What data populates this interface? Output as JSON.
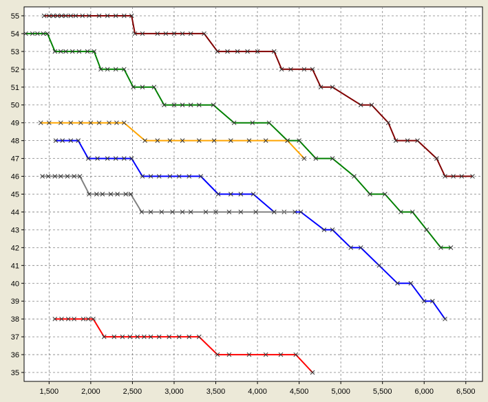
{
  "chart_data": {
    "type": "line",
    "xlim": [
      1200,
      6700
    ],
    "ylim": [
      34.5,
      55.5
    ],
    "x_ticks": [
      1500,
      2000,
      2500,
      3000,
      3500,
      4000,
      4500,
      5000,
      5500,
      6000,
      6500
    ],
    "x_tick_labels": [
      "1,500",
      "2,000",
      "2,500",
      "3,000",
      "3,500",
      "4,000",
      "4,500",
      "5,000",
      "5,500",
      "6,000",
      "6,500"
    ],
    "y_ticks": [
      35,
      36,
      37,
      38,
      39,
      40,
      41,
      42,
      43,
      44,
      45,
      46,
      47,
      48,
      49,
      50,
      51,
      52,
      53,
      54,
      55
    ],
    "y_tick_labels": [
      "35",
      "36",
      "37",
      "38",
      "39",
      "40",
      "41",
      "42",
      "43",
      "44",
      "45",
      "46",
      "47",
      "48",
      "49",
      "50",
      "51",
      "52",
      "53",
      "54",
      "55"
    ],
    "grid": true,
    "marker": "x",
    "series": [
      {
        "color": "#800000",
        "points": [
          [
            1440,
            55
          ],
          [
            1500,
            55
          ],
          [
            1550,
            55
          ],
          [
            1600,
            55
          ],
          [
            1650,
            55
          ],
          [
            1700,
            55
          ],
          [
            1760,
            55
          ],
          [
            1820,
            55
          ],
          [
            1900,
            55
          ],
          [
            1980,
            55
          ],
          [
            2100,
            55
          ],
          [
            2200,
            55
          ],
          [
            2300,
            55
          ],
          [
            2400,
            55
          ],
          [
            2490,
            55
          ],
          [
            2530,
            54
          ],
          [
            2620,
            54
          ],
          [
            2800,
            54
          ],
          [
            2900,
            54
          ],
          [
            3000,
            54
          ],
          [
            3100,
            54
          ],
          [
            3200,
            54
          ],
          [
            3360,
            54
          ],
          [
            3520,
            53
          ],
          [
            3640,
            53
          ],
          [
            3760,
            53
          ],
          [
            3880,
            53
          ],
          [
            4000,
            53
          ],
          [
            4200,
            53
          ],
          [
            4290,
            52
          ],
          [
            4400,
            52
          ],
          [
            4560,
            52
          ],
          [
            4660,
            52
          ],
          [
            4760,
            51
          ],
          [
            4900,
            51
          ],
          [
            5240,
            50
          ],
          [
            5370,
            50
          ],
          [
            5570,
            49
          ],
          [
            5660,
            48
          ],
          [
            5800,
            48
          ],
          [
            5920,
            48
          ],
          [
            6150,
            47
          ],
          [
            6250,
            46
          ],
          [
            6350,
            46
          ],
          [
            6450,
            46
          ],
          [
            6580,
            46
          ]
        ]
      },
      {
        "color": "#008000",
        "points": [
          [
            1220,
            54
          ],
          [
            1300,
            54
          ],
          [
            1360,
            54
          ],
          [
            1430,
            54
          ],
          [
            1480,
            54
          ],
          [
            1570,
            53
          ],
          [
            1640,
            53
          ],
          [
            1700,
            53
          ],
          [
            1780,
            53
          ],
          [
            1860,
            53
          ],
          [
            1960,
            53
          ],
          [
            2040,
            53
          ],
          [
            2120,
            52
          ],
          [
            2200,
            52
          ],
          [
            2300,
            52
          ],
          [
            2400,
            52
          ],
          [
            2510,
            51
          ],
          [
            2620,
            51
          ],
          [
            2760,
            51
          ],
          [
            2880,
            50
          ],
          [
            3000,
            50
          ],
          [
            3100,
            50
          ],
          [
            3200,
            50
          ],
          [
            3300,
            50
          ],
          [
            3470,
            50
          ],
          [
            3720,
            49
          ],
          [
            3940,
            49
          ],
          [
            4140,
            49
          ],
          [
            4360,
            48
          ],
          [
            4500,
            48
          ],
          [
            4700,
            47
          ],
          [
            4900,
            47
          ],
          [
            5160,
            46
          ],
          [
            5350,
            45
          ],
          [
            5530,
            45
          ],
          [
            5720,
            44
          ],
          [
            5860,
            44
          ],
          [
            6030,
            43
          ],
          [
            6200,
            42
          ],
          [
            6320,
            42
          ]
        ]
      },
      {
        "color": "#ffa500",
        "points": [
          [
            1400,
            49
          ],
          [
            1500,
            49
          ],
          [
            1640,
            49
          ],
          [
            1760,
            49
          ],
          [
            1880,
            49
          ],
          [
            2000,
            49
          ],
          [
            2100,
            49
          ],
          [
            2220,
            49
          ],
          [
            2310,
            49
          ],
          [
            2400,
            49
          ],
          [
            2650,
            48
          ],
          [
            2800,
            48
          ],
          [
            2950,
            48
          ],
          [
            3100,
            48
          ],
          [
            3300,
            48
          ],
          [
            3480,
            48
          ],
          [
            3680,
            48
          ],
          [
            3900,
            48
          ],
          [
            4100,
            48
          ],
          [
            4360,
            48
          ],
          [
            4560,
            47
          ]
        ]
      },
      {
        "color": "#0000ff",
        "points": [
          [
            1580,
            48
          ],
          [
            1660,
            48
          ],
          [
            1760,
            48
          ],
          [
            1850,
            48
          ],
          [
            1970,
            47
          ],
          [
            2080,
            47
          ],
          [
            2200,
            47
          ],
          [
            2300,
            47
          ],
          [
            2400,
            47
          ],
          [
            2490,
            47
          ],
          [
            2620,
            46
          ],
          [
            2720,
            46
          ],
          [
            2820,
            46
          ],
          [
            2950,
            46
          ],
          [
            3060,
            46
          ],
          [
            3180,
            46
          ],
          [
            3320,
            46
          ],
          [
            3530,
            45
          ],
          [
            3680,
            45
          ],
          [
            3800,
            45
          ],
          [
            3950,
            45
          ],
          [
            4200,
            44
          ],
          [
            4320,
            44
          ],
          [
            4520,
            44
          ],
          [
            4800,
            43
          ],
          [
            4900,
            43
          ],
          [
            5120,
            42
          ],
          [
            5240,
            42
          ],
          [
            5460,
            41
          ],
          [
            5680,
            40
          ],
          [
            5840,
            40
          ],
          [
            6000,
            39
          ],
          [
            6100,
            39
          ],
          [
            6250,
            38
          ]
        ]
      },
      {
        "color": "#808080",
        "points": [
          [
            1420,
            46
          ],
          [
            1490,
            46
          ],
          [
            1570,
            46
          ],
          [
            1640,
            46
          ],
          [
            1720,
            46
          ],
          [
            1800,
            46
          ],
          [
            1870,
            46
          ],
          [
            1980,
            45
          ],
          [
            2070,
            45
          ],
          [
            2140,
            45
          ],
          [
            2240,
            45
          ],
          [
            2320,
            45
          ],
          [
            2420,
            45
          ],
          [
            2480,
            45
          ],
          [
            2610,
            44
          ],
          [
            2720,
            44
          ],
          [
            2850,
            44
          ],
          [
            2980,
            44
          ],
          [
            3100,
            44
          ],
          [
            3200,
            44
          ],
          [
            3380,
            44
          ],
          [
            3500,
            44
          ],
          [
            3660,
            44
          ],
          [
            3800,
            44
          ],
          [
            3980,
            44
          ],
          [
            4200,
            44
          ],
          [
            4450,
            44
          ]
        ]
      },
      {
        "color": "#ff0000",
        "points": [
          [
            1570,
            38
          ],
          [
            1650,
            38
          ],
          [
            1730,
            38
          ],
          [
            1800,
            38
          ],
          [
            1910,
            38
          ],
          [
            1970,
            38
          ],
          [
            2030,
            38
          ],
          [
            2160,
            37
          ],
          [
            2280,
            37
          ],
          [
            2380,
            37
          ],
          [
            2470,
            37
          ],
          [
            2560,
            37
          ],
          [
            2640,
            37
          ],
          [
            2720,
            37
          ],
          [
            2820,
            37
          ],
          [
            2940,
            37
          ],
          [
            3060,
            37
          ],
          [
            3180,
            37
          ],
          [
            3300,
            37
          ],
          [
            3520,
            36
          ],
          [
            3660,
            36
          ],
          [
            3900,
            36
          ],
          [
            4100,
            36
          ],
          [
            4280,
            36
          ],
          [
            4460,
            36
          ],
          [
            4660,
            35
          ]
        ]
      }
    ]
  }
}
